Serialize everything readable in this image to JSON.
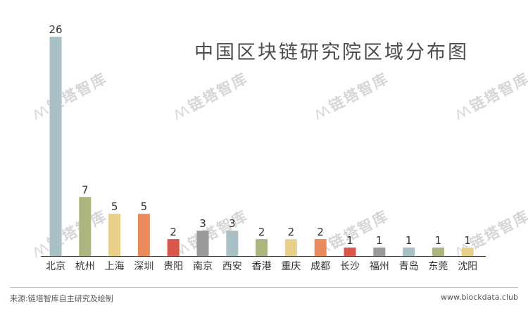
{
  "watermark_text": "链塔智库",
  "footer": {
    "source": "来源:链塔智库自主研究及绘制",
    "url": "www.biockdata.club"
  },
  "chart_data": {
    "type": "bar",
    "title": "中国区块链研究院区域分布图",
    "xlabel": "",
    "ylabel": "",
    "ylim": [
      0,
      26
    ],
    "grid": false,
    "categories": [
      "北京",
      "杭州",
      "上海",
      "深圳",
      "贵阳",
      "南京",
      "西安",
      "香港",
      "重庆",
      "成都",
      "长沙",
      "福州",
      "青岛",
      "东莞",
      "沈阳"
    ],
    "values": [
      26,
      7,
      5,
      5,
      2,
      3,
      3,
      2,
      2,
      2,
      1,
      1,
      1,
      1,
      1
    ],
    "colors": [
      "#a9c0c7",
      "#acb57e",
      "#e8d08a",
      "#e98a5e",
      "#d9564a",
      "#9a9a9a",
      "#a9c0c7",
      "#acb57e",
      "#e8d08a",
      "#e98a5e",
      "#d9564a",
      "#9a9a9a",
      "#a9c0c7",
      "#acb57e",
      "#e8d08a"
    ],
    "axis_color": "#333333",
    "label_color": "#333333"
  }
}
